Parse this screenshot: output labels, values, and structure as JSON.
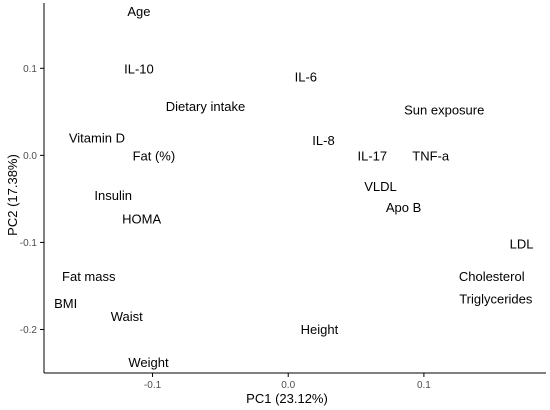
{
  "chart_data": {
    "type": "scatter",
    "title": "",
    "xlabel": "PC1 (23.12%)",
    "ylabel": "PC2 (17.38%)",
    "xlim": [
      -0.18,
      0.19
    ],
    "ylim": [
      -0.25,
      0.175
    ],
    "xticks": [
      {
        "value": -0.1,
        "label": "-0.1"
      },
      {
        "value": 0.0,
        "label": "0.0"
      },
      {
        "value": 0.1,
        "label": "0.1"
      }
    ],
    "yticks": [
      {
        "value": 0.1,
        "label": "0.1"
      },
      {
        "value": 0.0,
        "label": "0.0"
      },
      {
        "value": -0.1,
        "label": "-0.1"
      },
      {
        "value": -0.2,
        "label": "-0.2"
      }
    ],
    "grid": false,
    "points": [
      {
        "label": "Age",
        "x": -0.11,
        "y": 0.165
      },
      {
        "label": "IL-10",
        "x": -0.11,
        "y": 0.099
      },
      {
        "label": "IL-6",
        "x": 0.013,
        "y": 0.09
      },
      {
        "label": "Dietary intake",
        "x": -0.061,
        "y": 0.056
      },
      {
        "label": "Sun exposure",
        "x": 0.115,
        "y": 0.052
      },
      {
        "label": "Vitamin D",
        "x": -0.141,
        "y": 0.02
      },
      {
        "label": "IL-8",
        "x": 0.026,
        "y": 0.017
      },
      {
        "label": "Fat (%)",
        "x": -0.099,
        "y": -0.001
      },
      {
        "label": "IL-17",
        "x": 0.062,
        "y": -0.001
      },
      {
        "label": "TNF-a",
        "x": 0.105,
        "y": -0.001
      },
      {
        "label": "VLDL",
        "x": 0.068,
        "y": -0.036
      },
      {
        "label": "Insulin",
        "x": -0.129,
        "y": -0.046
      },
      {
        "label": "Apo B",
        "x": 0.085,
        "y": -0.06
      },
      {
        "label": "HOMA",
        "x": -0.108,
        "y": -0.073
      },
      {
        "label": "LDL",
        "x": 0.172,
        "y": -0.102
      },
      {
        "label": "Fat mass",
        "x": -0.147,
        "y": -0.139
      },
      {
        "label": "Cholesterol",
        "x": 0.15,
        "y": -0.139
      },
      {
        "label": "Triglycerides",
        "x": 0.153,
        "y": -0.165
      },
      {
        "label": "BMI",
        "x": -0.164,
        "y": -0.17
      },
      {
        "label": "Waist",
        "x": -0.119,
        "y": -0.185
      },
      {
        "label": "Height",
        "x": 0.023,
        "y": -0.2
      },
      {
        "label": "Weight",
        "x": -0.103,
        "y": -0.238
      }
    ]
  }
}
